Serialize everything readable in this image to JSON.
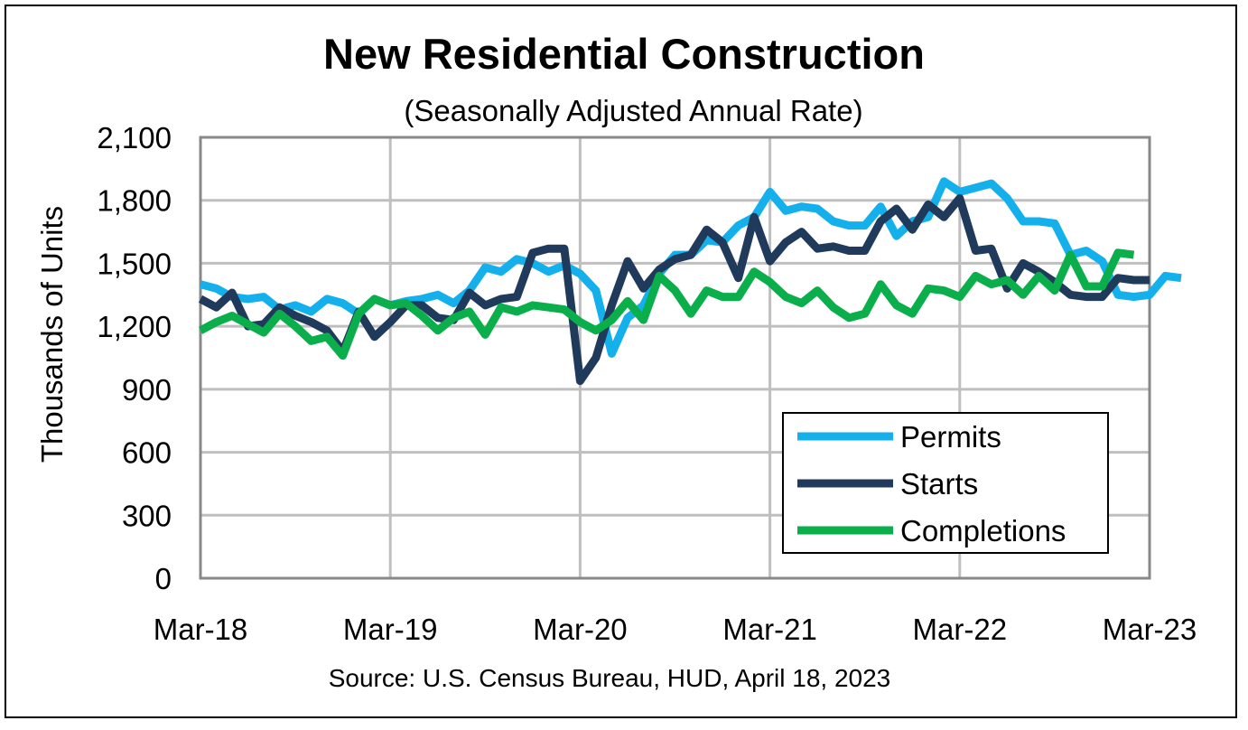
{
  "chart_data": {
    "type": "line",
    "title": "New Residential Construction",
    "subtitle": "(Seasonally Adjusted Annual Rate)",
    "ylabel": "Thousands of Units",
    "xlabel": "",
    "source": "Source:  U.S. Census Bureau, HUD, April 18, 2023",
    "ylim": [
      0,
      2100
    ],
    "y_ticks": [
      "0",
      "300",
      "600",
      "900",
      "1,200",
      "1,500",
      "1,800",
      "2,100"
    ],
    "y_tick_values": [
      0,
      300,
      600,
      900,
      1200,
      1500,
      1800,
      2100
    ],
    "x_ticks": [
      "Mar-18",
      "Mar-19",
      "Mar-20",
      "Mar-21",
      "Mar-22",
      "Mar-23"
    ],
    "x_tick_index": [
      0,
      12,
      24,
      36,
      48,
      60
    ],
    "grid": true,
    "legend_position": "bottom-right",
    "series": [
      {
        "name": "Permits",
        "color": "#14B0EC",
        "values": [
          1400,
          1380,
          1340,
          1330,
          1340,
          1280,
          1300,
          1270,
          1330,
          1310,
          1260,
          1330,
          1300,
          1320,
          1330,
          1350,
          1310,
          1370,
          1480,
          1460,
          1520,
          1500,
          1460,
          1490,
          1450,
          1370,
          1070,
          1240,
          1300,
          1450,
          1540,
          1540,
          1610,
          1600,
          1680,
          1720,
          1840,
          1750,
          1770,
          1760,
          1700,
          1680,
          1680,
          1770,
          1630,
          1700,
          1720,
          1890,
          1840,
          1860,
          1880,
          1810,
          1700,
          1700,
          1690,
          1540,
          1560,
          1510,
          1350,
          1340,
          1350,
          1440,
          1430
        ]
      },
      {
        "name": "Starts",
        "color": "#203A5B",
        "values": [
          1330,
          1290,
          1360,
          1200,
          1210,
          1290,
          1250,
          1220,
          1180,
          1080,
          1270,
          1150,
          1220,
          1300,
          1300,
          1240,
          1230,
          1360,
          1300,
          1330,
          1340,
          1550,
          1570,
          1570,
          940,
          1050,
          1300,
          1510,
          1380,
          1470,
          1520,
          1540,
          1660,
          1600,
          1430,
          1720,
          1510,
          1600,
          1650,
          1570,
          1580,
          1560,
          1560,
          1700,
          1760,
          1660,
          1780,
          1720,
          1810,
          1560,
          1570,
          1380,
          1500,
          1460,
          1410,
          1350,
          1340,
          1340,
          1430,
          1420,
          1420
        ]
      },
      {
        "name": "Completions",
        "color": "#0AAE4A",
        "values": [
          1180,
          1220,
          1250,
          1210,
          1170,
          1260,
          1200,
          1130,
          1150,
          1060,
          1260,
          1330,
          1300,
          1310,
          1250,
          1180,
          1240,
          1270,
          1160,
          1290,
          1270,
          1300,
          1290,
          1280,
          1220,
          1180,
          1230,
          1320,
          1230,
          1440,
          1370,
          1260,
          1370,
          1340,
          1340,
          1460,
          1410,
          1340,
          1310,
          1370,
          1290,
          1240,
          1260,
          1400,
          1300,
          1260,
          1380,
          1370,
          1340,
          1440,
          1400,
          1420,
          1350,
          1440,
          1370,
          1540,
          1390,
          1390,
          1550,
          1540
        ]
      }
    ]
  }
}
